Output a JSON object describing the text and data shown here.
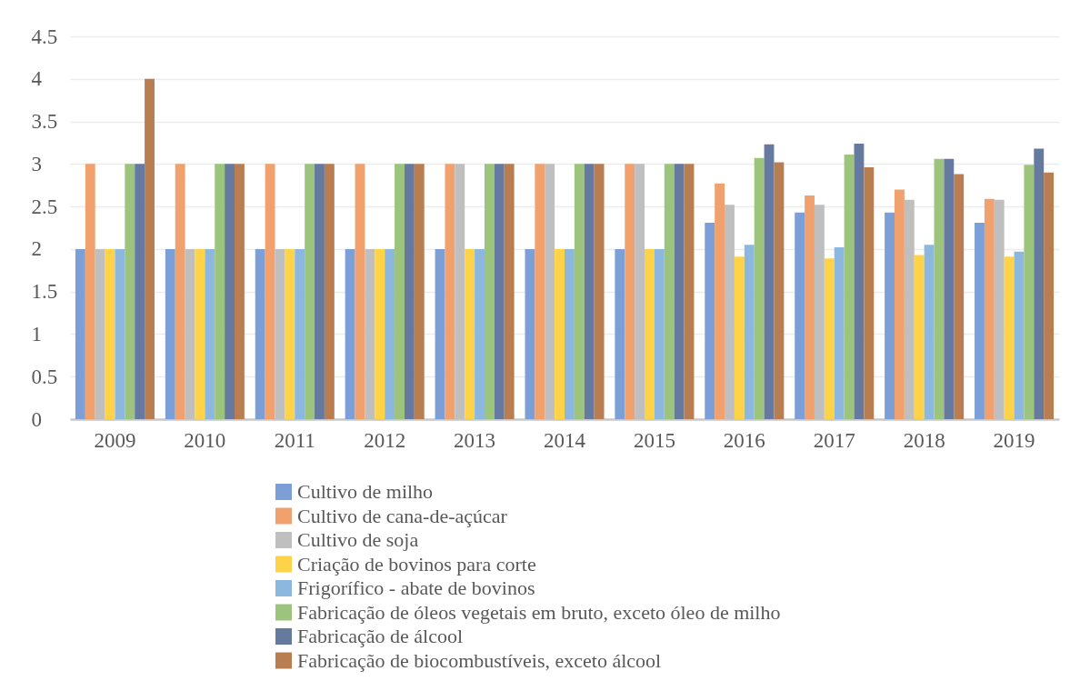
{
  "chart_data": {
    "type": "bar",
    "categories": [
      "2009",
      "2010",
      "2011",
      "2012",
      "2013",
      "2014",
      "2015",
      "2016",
      "2017",
      "2018",
      "2019"
    ],
    "series": [
      {
        "name": "Cultivo de milho",
        "color": "#7b9fd6",
        "values": [
          2,
          2,
          2,
          2,
          2,
          2,
          2,
          2.31,
          2.43,
          2.43,
          2.31
        ]
      },
      {
        "name": "Cultivo de cana-de-açúcar",
        "color": "#f1a16e",
        "values": [
          3,
          3,
          3,
          3,
          3,
          3,
          3,
          2.77,
          2.63,
          2.7,
          2.59
        ]
      },
      {
        "name": "Cultivo de soja",
        "color": "#bfbfbf",
        "values": [
          2,
          2,
          2,
          2,
          3,
          3,
          3,
          2.52,
          2.52,
          2.58,
          2.58
        ]
      },
      {
        "name": "Criação de bovinos para corte",
        "color": "#ffd348",
        "values": [
          2,
          2,
          2,
          2,
          2,
          2,
          2,
          1.91,
          1.89,
          1.93,
          1.91
        ]
      },
      {
        "name": "Frigorífico - abate de bovinos",
        "color": "#8cb8e0",
        "values": [
          2,
          2,
          2,
          2,
          2,
          2,
          2,
          2.05,
          2.02,
          2.05,
          1.97
        ]
      },
      {
        "name": "Fabricação de óleos vegetais em bruto, exceto óleo de milho",
        "color": "#9cc47c",
        "values": [
          3,
          3,
          3,
          3,
          3,
          3,
          3,
          3.07,
          3.11,
          3.06,
          2.99
        ]
      },
      {
        "name": "Fabricação de álcool",
        "color": "#66799f",
        "values": [
          3,
          3,
          3,
          3,
          3,
          3,
          3,
          3.23,
          3.24,
          3.06,
          3.18
        ]
      },
      {
        "name": "Fabricação de biocombustíveis, exceto álcool",
        "color": "#b97d52",
        "values": [
          4,
          3,
          3,
          3,
          3,
          3,
          3,
          3.02,
          2.96,
          2.88,
          2.9
        ]
      }
    ],
    "ylim": [
      0,
      4.5
    ],
    "yticks": [
      0,
      0.5,
      1,
      1.5,
      2,
      2.5,
      3,
      3.5,
      4,
      4.5
    ],
    "grid": "y",
    "legend": "bottom"
  }
}
